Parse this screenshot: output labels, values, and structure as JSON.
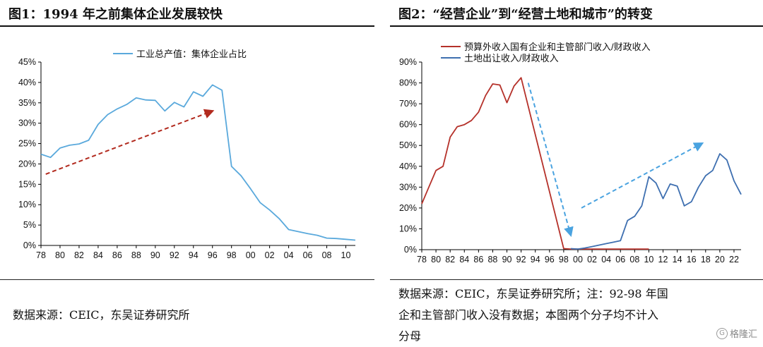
{
  "left": {
    "title": "图1：1994 年之前集体企业发展较快",
    "source": "数据来源：CEIC，东吴证券研究所"
  },
  "right": {
    "title": "图2：“经营企业”到“经营土地和城市”的转变",
    "source_lines": [
      "数据来源：CEIC，东吴证券研究所；注：92-98 年国",
      "企和主管部门收入没有数据；本图两个分子均不计入",
      "分母"
    ]
  },
  "watermark": {
    "text": "格隆汇"
  },
  "colors": {
    "blue": "#5aa9dc",
    "red_arrow": "#b22a1e",
    "red_line": "#b5312a",
    "dark_blue": "#3e6fb0",
    "arrow_blue": "#4aa3e0"
  },
  "chart_data": [
    {
      "type": "line",
      "title": "",
      "ylim": [
        0,
        45
      ],
      "yticks": [
        "0%",
        "5%",
        "10%",
        "15%",
        "20%",
        "25%",
        "30%",
        "35%",
        "40%",
        "45%"
      ],
      "xticks": [
        "78",
        "80",
        "82",
        "84",
        "86",
        "88",
        "90",
        "92",
        "94",
        "96",
        "98",
        "00",
        "02",
        "04",
        "06",
        "08",
        "10"
      ],
      "xlim": [
        1978,
        2011
      ],
      "legend_position": "top",
      "annotation": "dashed red arrow indicating upward trend from 1978 to 1995",
      "series": [
        {
          "name": "工业总产值：集体企业占比",
          "color": "#5aa9dc",
          "x": [
            1978,
            1979,
            1980,
            1981,
            1982,
            1983,
            1984,
            1985,
            1986,
            1987,
            1988,
            1989,
            1990,
            1991,
            1992,
            1993,
            1994,
            1995,
            1996,
            1997,
            1998,
            1999,
            2000,
            2001,
            2002,
            2003,
            2004,
            2005,
            2006,
            2007,
            2008,
            2009,
            2010,
            2011
          ],
          "values": [
            22.4,
            21.6,
            23.9,
            24.6,
            24.9,
            25.8,
            29.7,
            32.1,
            33.5,
            34.6,
            36.2,
            35.7,
            35.6,
            33.0,
            35.1,
            34.0,
            37.7,
            36.6,
            39.4,
            38.1,
            19.4,
            17.1,
            13.9,
            10.5,
            8.7,
            6.6,
            3.9,
            3.4,
            2.9,
            2.5,
            1.8,
            1.7,
            1.5,
            1.3
          ]
        }
      ]
    },
    {
      "type": "line",
      "title": "",
      "ylim": [
        0,
        90
      ],
      "yticks": [
        "0%",
        "10%",
        "20%",
        "30%",
        "40%",
        "50%",
        "60%",
        "70%",
        "80%",
        "90%"
      ],
      "xticks": [
        "78",
        "80",
        "82",
        "84",
        "86",
        "88",
        "90",
        "92",
        "94",
        "96",
        "98",
        "00",
        "02",
        "04",
        "06",
        "08",
        "10",
        "12",
        "14",
        "16",
        "18",
        "20",
        "22"
      ],
      "xlim": [
        1978,
        2023
      ],
      "legend_position": "top-left",
      "annotation": "dashed blue arrows: downward from 1993 to 2000, upward from 2001 to 2019",
      "series": [
        {
          "name": "预算外收入国有企业和主管部门收入/财政收入",
          "color": "#b5312a",
          "x": [
            1978,
            1979,
            1980,
            1981,
            1982,
            1983,
            1984,
            1985,
            1986,
            1987,
            1988,
            1989,
            1990,
            1991,
            1992,
            1998,
            1999,
            2000,
            2001,
            2002,
            2003,
            2004,
            2005,
            2006,
            2007,
            2008,
            2009,
            2010
          ],
          "values": [
            22,
            30,
            38,
            40,
            54,
            59,
            60,
            62,
            66,
            74,
            79.5,
            79,
            70.5,
            78.5,
            82.5,
            0.5,
            0.3,
            0.3,
            0.3,
            0.3,
            0.3,
            0.3,
            0.3,
            0.3,
            0.3,
            0.3,
            0.3,
            0.3
          ]
        },
        {
          "name": "土地出让收入/财政收入",
          "color": "#3e6fb0",
          "x": [
            1999,
            2000,
            2001,
            2002,
            2003,
            2004,
            2005,
            2006,
            2007,
            2008,
            2009,
            2010,
            2011,
            2012,
            2013,
            2014,
            2015,
            2016,
            2017,
            2018,
            2019,
            2020,
            2021,
            2022,
            2023
          ],
          "values": [
            0.5,
            0.3,
            0.8,
            1.5,
            2.2,
            2.9,
            3.6,
            4.3,
            14,
            16,
            21,
            35,
            32,
            24.5,
            31.5,
            30.5,
            21,
            23,
            30,
            35.5,
            38,
            46,
            43,
            33,
            26.5
          ]
        }
      ]
    }
  ]
}
